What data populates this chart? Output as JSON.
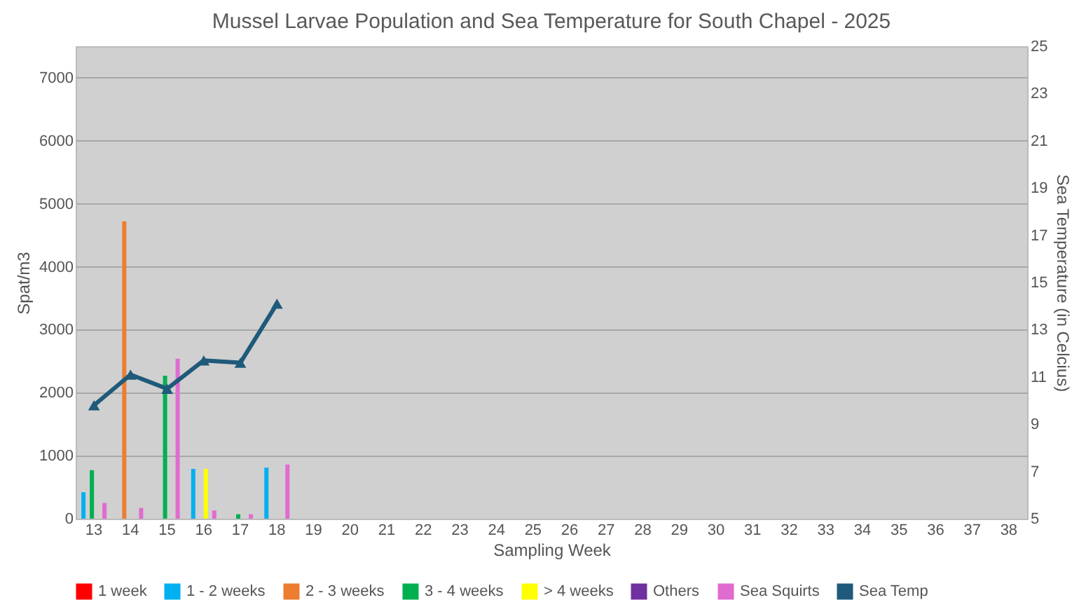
{
  "chart_data": {
    "type": "bar",
    "title": "Mussel Larvae Population and Sea Temperature for South Chapel - 2025",
    "xlabel": "Sampling Week",
    "ylabel": "Spat/m3",
    "y2label": "Sea Temperature (in Celcius)",
    "categories": [
      "13",
      "14",
      "15",
      "16",
      "17",
      "18",
      "19",
      "20",
      "21",
      "22",
      "23",
      "24",
      "25",
      "26",
      "27",
      "28",
      "29",
      "30",
      "31",
      "32",
      "33",
      "34",
      "35",
      "36",
      "37",
      "38"
    ],
    "ylim": [
      0,
      7500
    ],
    "yticks": [
      0,
      1000,
      2000,
      3000,
      4000,
      5000,
      6000,
      7000
    ],
    "y2lim": [
      5,
      25
    ],
    "y2ticks": [
      5,
      7,
      9,
      11,
      13,
      15,
      17,
      19,
      21,
      23,
      25
    ],
    "grid": "y",
    "legend": "bottom",
    "series": [
      {
        "name": "1 week",
        "color": "#ff0000",
        "values": [
          null,
          null,
          null,
          null,
          null,
          null,
          null,
          null,
          null,
          null,
          null,
          null,
          null,
          null,
          null,
          null,
          null,
          null,
          null,
          null,
          null,
          null,
          null,
          null,
          null,
          null
        ]
      },
      {
        "name": "1 - 2 weeks",
        "color": "#00b0f0",
        "values": [
          420,
          null,
          null,
          790,
          null,
          810,
          null,
          null,
          null,
          null,
          null,
          null,
          null,
          null,
          null,
          null,
          null,
          null,
          null,
          null,
          null,
          null,
          null,
          null,
          null,
          null
        ]
      },
      {
        "name": "2 - 3 weeks",
        "color": "#ed7d31",
        "values": [
          null,
          4720,
          null,
          null,
          null,
          null,
          null,
          null,
          null,
          null,
          null,
          null,
          null,
          null,
          null,
          null,
          null,
          null,
          null,
          null,
          null,
          null,
          null,
          null,
          null,
          null
        ]
      },
      {
        "name": "3 - 4 weeks",
        "color": "#00b050",
        "values": [
          770,
          null,
          2270,
          null,
          70,
          null,
          null,
          null,
          null,
          null,
          null,
          null,
          null,
          null,
          null,
          null,
          null,
          null,
          null,
          null,
          null,
          null,
          null,
          null,
          null,
          null
        ]
      },
      {
        "name": "> 4 weeks",
        "color": "#ffff00",
        "values": [
          null,
          null,
          null,
          790,
          null,
          null,
          null,
          null,
          null,
          null,
          null,
          null,
          null,
          null,
          null,
          null,
          null,
          null,
          null,
          null,
          null,
          null,
          null,
          null,
          null,
          null
        ]
      },
      {
        "name": "Others",
        "color": "#7030a0",
        "values": [
          null,
          null,
          null,
          null,
          null,
          null,
          null,
          null,
          null,
          null,
          null,
          null,
          null,
          null,
          null,
          null,
          null,
          null,
          null,
          null,
          null,
          null,
          null,
          null,
          null,
          null
        ]
      },
      {
        "name": "Sea Squirts",
        "color": "#e06cd0",
        "values": [
          250,
          170,
          2540,
          130,
          70,
          860,
          null,
          null,
          null,
          null,
          null,
          null,
          null,
          null,
          null,
          null,
          null,
          null,
          null,
          null,
          null,
          null,
          null,
          null,
          null,
          null
        ]
      },
      {
        "name": "Sea Temp",
        "type": "line",
        "axis": "y2",
        "marker": "triangle",
        "color": "#1f5a7a",
        "values": [
          9.8,
          11.1,
          10.5,
          11.7,
          11.6,
          14.1,
          null,
          null,
          null,
          null,
          null,
          null,
          null,
          null,
          null,
          null,
          null,
          null,
          null,
          null,
          null,
          null,
          null,
          null,
          null,
          null
        ]
      }
    ]
  }
}
